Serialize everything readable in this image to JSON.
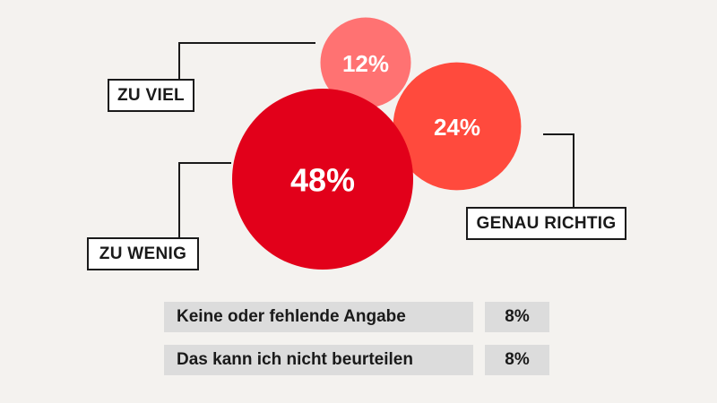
{
  "chart_data": {
    "type": "bubble",
    "series": [
      {
        "category": "ZU VIEL",
        "value": 12,
        "label": "12%",
        "color": "#ff7272"
      },
      {
        "category": "GENAU RICHTIG",
        "value": 24,
        "label": "24%",
        "color": "#ff4a3d"
      },
      {
        "category": "ZU WENIG",
        "value": 48,
        "label": "48%",
        "color": "#e2001a"
      }
    ],
    "extra": [
      {
        "label": "Keine oder fehlende Angabe",
        "value": "8%"
      },
      {
        "label": "Das kann ich nicht beurteilen",
        "value": "8%"
      }
    ]
  }
}
